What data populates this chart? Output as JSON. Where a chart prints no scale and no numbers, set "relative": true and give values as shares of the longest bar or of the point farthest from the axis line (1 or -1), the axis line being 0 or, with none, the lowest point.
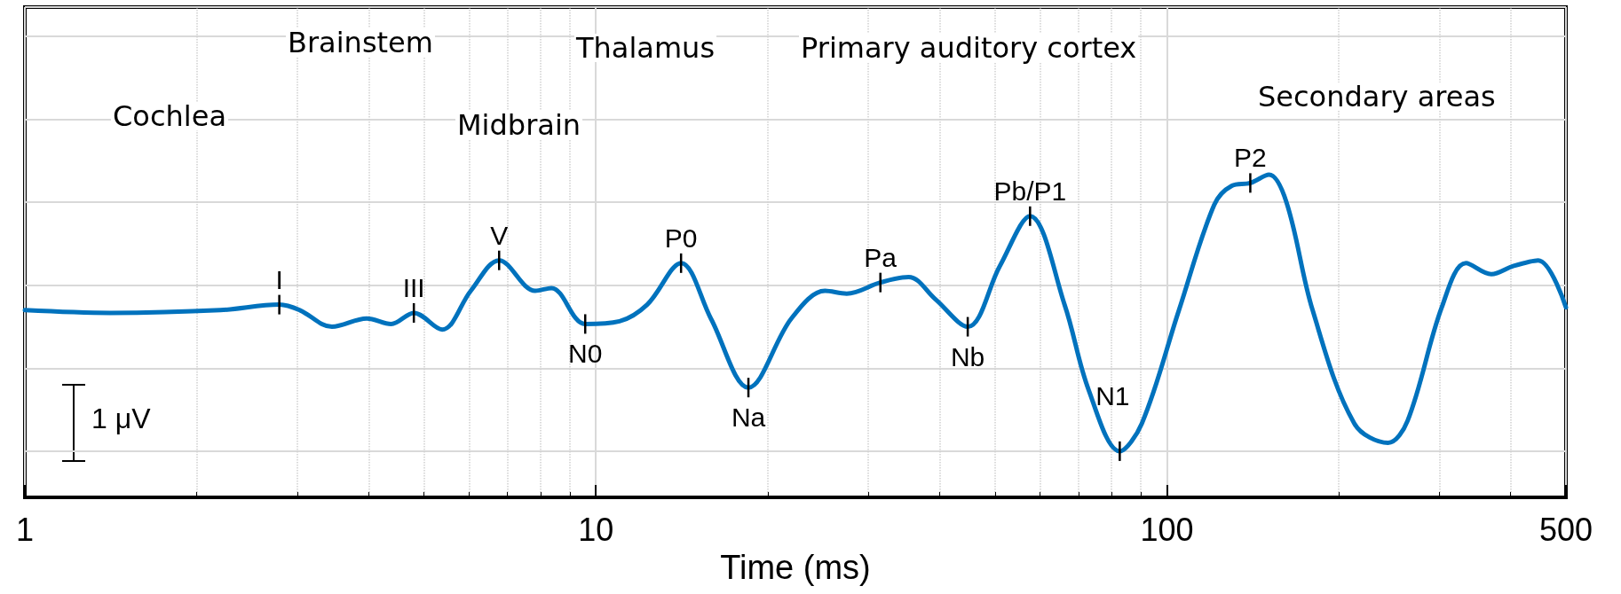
{
  "chart_data": {
    "type": "line",
    "relative": true,
    "xlabel": "Time (ms)",
    "log": "x",
    "grid": true,
    "marker": "none",
    "line_style": "solid",
    "xlim": [
      1,
      500
    ],
    "xticks": [
      1,
      10,
      100,
      500
    ],
    "x": [
      1,
      1.41,
      2.2,
      2.79,
      3.03,
      3.45,
      3.97,
      4.38,
      4.8,
      5.38,
      6.04,
      6.77,
      7.83,
      8.36,
      9.58,
      11.0,
      12.3,
      14.1,
      15.9,
      18.5,
      22.0,
      25.2,
      27.5,
      31.5,
      35.3,
      39.3,
      44.8,
      51.0,
      57.6,
      66.2,
      73.0,
      82.7,
      90.4,
      105,
      121,
      130,
      140,
      151,
      162,
      180,
      213,
      244,
      264,
      303,
      334,
      370,
      405,
      447,
      500
    ],
    "series": [
      {
        "color": "#0072bd",
        "values": [
          0.51,
          0.5,
          0.51,
          0.53,
          0.51,
          0.45,
          0.48,
          0.46,
          0.5,
          0.44,
          0.58,
          0.69,
          0.58,
          0.59,
          0.46,
          0.47,
          0.53,
          0.68,
          0.48,
          0.23,
          0.48,
          0.58,
          0.57,
          0.61,
          0.63,
          0.55,
          0.45,
          0.67,
          0.85,
          0.53,
          0.22,
          0,
          0.1,
          0.51,
          0.89,
          0.96,
          0.97,
          1,
          0.9,
          0.51,
          0.1,
          0.03,
          0.11,
          0.52,
          0.68,
          0.64,
          0.67,
          0.69,
          0.52
        ]
      }
    ],
    "annotations": [
      "Cochlea",
      "Brainstem",
      "Midbrain",
      "Thalamus",
      "Primary auditory cortex",
      "Secondary areas",
      "1 μV",
      {
        "text": "I",
        "x": 2.79,
        "y": 0.53
      },
      {
        "text": "III",
        "x": 4.8,
        "y": 0.5
      },
      {
        "text": "V",
        "x": 6.77,
        "y": 0.69
      },
      {
        "text": "N0",
        "x": 9.58,
        "y": 0.46
      },
      {
        "text": "P0",
        "x": 14.1,
        "y": 0.68
      },
      {
        "text": "Na",
        "x": 18.5,
        "y": 0.23
      },
      {
        "text": "Pa",
        "x": 31.5,
        "y": 0.61
      },
      {
        "text": "Nb",
        "x": 44.8,
        "y": 0.45
      },
      {
        "text": "Pb/P1",
        "x": 57.6,
        "y": 0.85
      },
      {
        "text": "N1",
        "x": 82.7,
        "y": 0
      },
      {
        "text": "P2",
        "x": 140,
        "y": 0.97
      }
    ]
  }
}
